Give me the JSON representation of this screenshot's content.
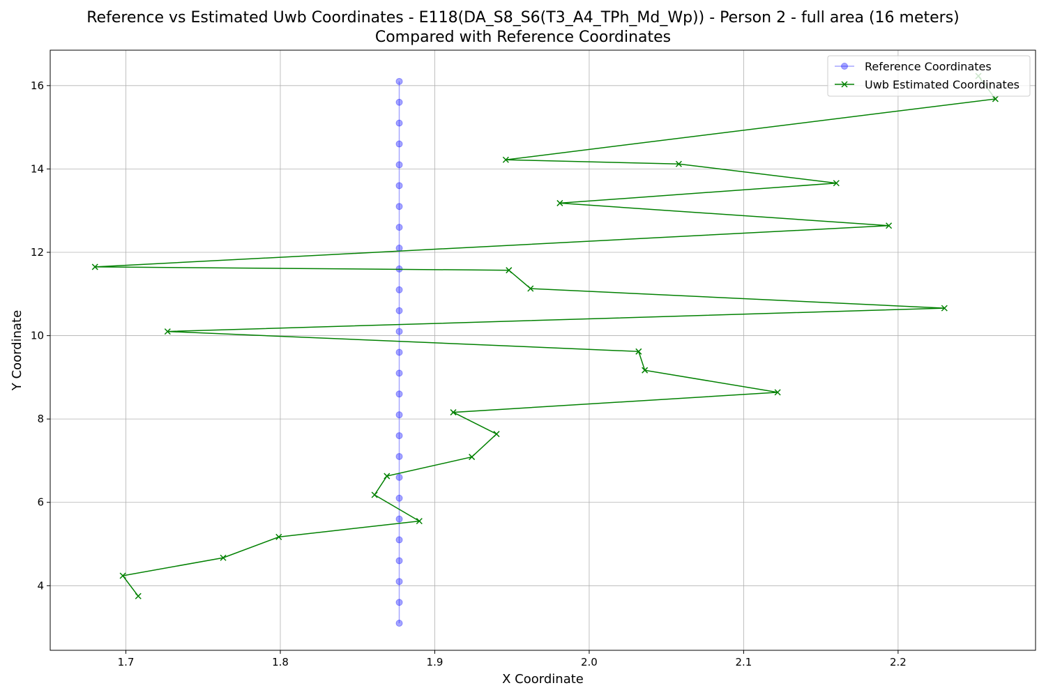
{
  "chart_data": {
    "type": "line",
    "title_lines": [
      "Reference vs Estimated Uwb Coordinates - E118(DA_S8_S6(T3_A4_TPh_Md_Wp)) - Person 2 - full area (16 meters)",
      "Compared with Reference Coordinates"
    ],
    "xlabel": "X Coordinate",
    "ylabel": "Y Coordinate",
    "xlim": [
      1.651,
      2.289
    ],
    "ylim": [
      2.45,
      16.85
    ],
    "xticks": [
      1.7,
      1.8,
      1.9,
      2.0,
      2.1,
      2.2
    ],
    "yticks": [
      4,
      6,
      8,
      10,
      12,
      14,
      16
    ],
    "grid": true,
    "legend_position": "top-right",
    "series": [
      {
        "name": "Reference Coordinates",
        "color": "#0000ff",
        "marker": "circle",
        "x": [
          1.877,
          1.877,
          1.877,
          1.877,
          1.877,
          1.877,
          1.877,
          1.877,
          1.877,
          1.877,
          1.877,
          1.877,
          1.877,
          1.877,
          1.877,
          1.877,
          1.877,
          1.877,
          1.877,
          1.877,
          1.877,
          1.877,
          1.877,
          1.877,
          1.877,
          1.877,
          1.877
        ],
        "y": [
          3.1,
          3.6,
          4.1,
          4.6,
          5.1,
          5.6,
          6.1,
          6.6,
          7.1,
          7.6,
          8.1,
          8.6,
          9.1,
          9.6,
          10.1,
          10.6,
          11.1,
          11.6,
          12.1,
          12.6,
          13.1,
          13.6,
          14.1,
          14.6,
          15.1,
          15.6,
          16.1
        ]
      },
      {
        "name": "Uwb Estimated Coordinates",
        "color": "#008000",
        "marker": "x",
        "x": [
          1.708,
          1.698,
          1.763,
          1.799,
          1.89,
          1.861,
          1.869,
          1.924,
          1.94,
          1.912,
          2.122,
          2.036,
          2.032,
          1.727,
          2.23,
          1.962,
          1.948,
          1.68,
          2.194,
          1.981,
          2.16,
          2.058,
          1.946,
          2.263,
          2.252
        ],
        "y": [
          3.75,
          4.24,
          4.67,
          5.17,
          5.55,
          6.18,
          6.63,
          7.09,
          7.64,
          8.16,
          8.64,
          9.17,
          9.62,
          10.1,
          10.66,
          11.13,
          11.57,
          11.65,
          12.64,
          13.18,
          13.66,
          14.12,
          14.22,
          15.68,
          16.23
        ]
      }
    ]
  }
}
